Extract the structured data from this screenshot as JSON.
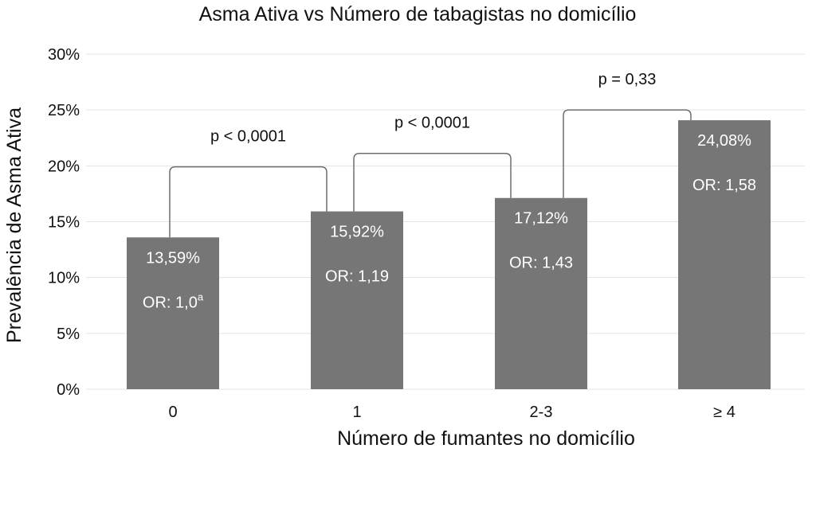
{
  "chart_data": {
    "type": "bar",
    "title": "Asma Ativa vs Número de tabagistas no domicílio",
    "xlabel": "Número de fumantes no domicílio",
    "ylabel": "Prevalência de Asma Ativa",
    "categories": [
      "0",
      "1",
      "2-3",
      "≥ 4"
    ],
    "values": [
      13.59,
      15.92,
      17.12,
      24.08
    ],
    "value_labels": [
      "13,59%",
      "15,92%",
      "17,12%",
      "24,08%"
    ],
    "or_labels": [
      "OR: 1,0",
      "OR: 1,19",
      "OR: 1,43",
      "OR: 1,58"
    ],
    "or_superscripts": [
      "a",
      "",
      "",
      ""
    ],
    "ylim": [
      0,
      30
    ],
    "yticks": [
      0,
      5,
      10,
      15,
      20,
      25,
      30
    ],
    "ytick_labels": [
      "0%",
      "5%",
      "10%",
      "15%",
      "20%",
      "25%",
      "30%"
    ],
    "grid": true,
    "bar_color": "#767676",
    "comparisons": [
      {
        "from": 0,
        "to": 1,
        "label": "p < 0,0001"
      },
      {
        "from": 1,
        "to": 2,
        "label": "p < 0,0001"
      },
      {
        "from": 2,
        "to": 3,
        "label": "p = 0,33"
      }
    ]
  }
}
